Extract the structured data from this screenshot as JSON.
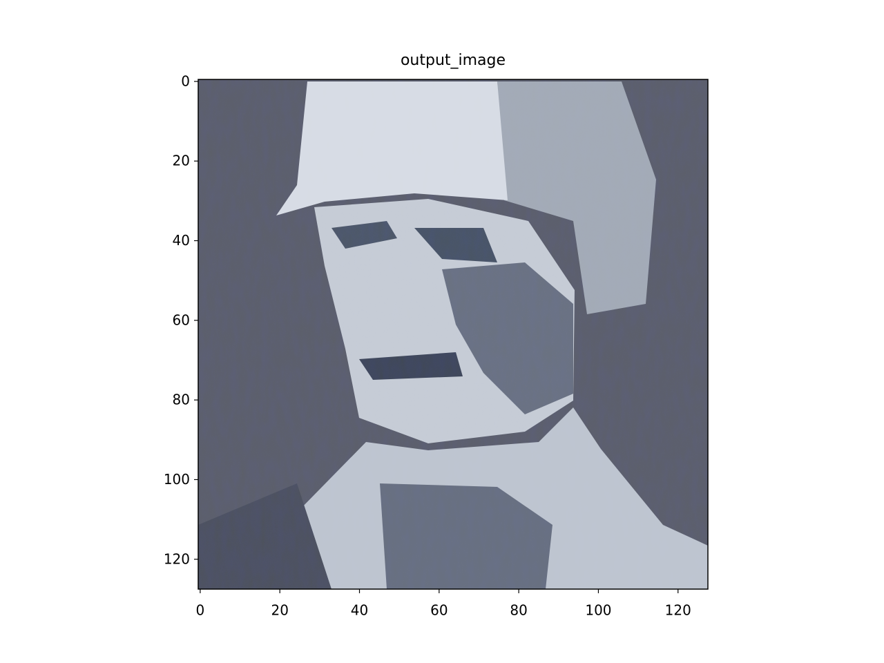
{
  "chart_data": {
    "type": "image",
    "title": "output_image",
    "xlim": [
      -0.5,
      127.5
    ],
    "ylim": [
      127.5,
      -0.5
    ],
    "xticks": [
      0,
      20,
      40,
      60,
      80,
      100,
      120
    ],
    "yticks": [
      0,
      20,
      40,
      60,
      80,
      100,
      120
    ]
  }
}
